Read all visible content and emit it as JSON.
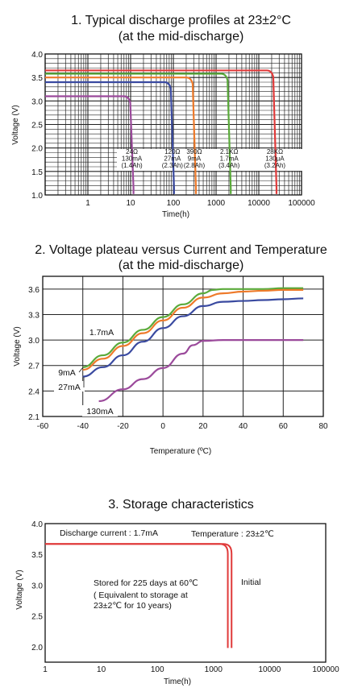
{
  "chart_data": [
    {
      "type": "line",
      "title_line1": "1. Typical discharge profiles at 23±2°C",
      "title_line2": "(at  the mid-discharge)",
      "xlabel": "Time(h)",
      "ylabel": "Voltage (V)",
      "xscale": "log",
      "xlim": [
        0.1,
        100000
      ],
      "ylim": [
        1.0,
        4.0
      ],
      "x_ticks": [
        "1",
        "10",
        "100",
        "1000",
        "10000",
        "100000"
      ],
      "y_ticks": [
        "1.0",
        "1.5",
        "2.0",
        "2.5",
        "3.0",
        "3.5",
        "4.0"
      ],
      "grid": true,
      "series": [
        {
          "color": "#9b4a9b",
          "plateau": 3.1,
          "cutoff": 9,
          "labels": [
            "24Ω",
            "130mA",
            "(1.4Ah)"
          ]
        },
        {
          "color": "#3a4aa0",
          "plateau": 3.4,
          "cutoff": 80,
          "labels": [
            "120Ω",
            "27mA",
            "(2.3Ah)"
          ]
        },
        {
          "color": "#ee7a2a",
          "plateau": 3.5,
          "cutoff": 260,
          "labels": [
            "390Ω",
            "9mA",
            "(2.8Ah)"
          ]
        },
        {
          "color": "#5aaa3a",
          "plateau": 3.58,
          "cutoff": 1700,
          "labels": [
            "2.1KΩ",
            "1.7mA",
            "(3.4Ah)"
          ]
        },
        {
          "color": "#e03a3a",
          "plateau": 3.65,
          "cutoff": 20000,
          "labels": [
            "28KΩ",
            "130μA",
            "(3.2Ah)"
          ]
        }
      ]
    },
    {
      "type": "line",
      "title_line1": "2. Voltage plateau versus Current and Temperature",
      "title_line2": "(at the mid-discharge)",
      "xlabel": "Temperature (ºC)",
      "ylabel": "Voltage (V)",
      "xlim": [
        -60,
        80
      ],
      "ylim": [
        2.1,
        3.75
      ],
      "x_ticks": [
        "-60",
        "-40",
        "-20",
        "0",
        "20",
        "40",
        "60",
        "80"
      ],
      "y_ticks": [
        "2.1",
        "2.4",
        "2.7",
        "3.0",
        "3.3",
        "3.6"
      ],
      "grid": true,
      "series": [
        {
          "name": "1.7mA",
          "color": "#5aaa3a",
          "x": [
            -40,
            -30,
            -20,
            -10,
            0,
            10,
            20,
            25,
            30,
            40,
            50,
            60,
            70
          ],
          "y": [
            2.68,
            2.82,
            2.97,
            3.12,
            3.27,
            3.42,
            3.55,
            3.59,
            3.6,
            3.6,
            3.6,
            3.61,
            3.61
          ]
        },
        {
          "name": "9mA",
          "color": "#ee7a2a",
          "x": [
            -40,
            -30,
            -20,
            -10,
            0,
            10,
            20,
            30,
            40,
            50,
            60,
            70
          ],
          "y": [
            2.65,
            2.78,
            2.93,
            3.08,
            3.23,
            3.38,
            3.5,
            3.55,
            3.57,
            3.58,
            3.59,
            3.59
          ]
        },
        {
          "name": "27mA",
          "color": "#3a4aa0",
          "x": [
            -40,
            -30,
            -20,
            -10,
            0,
            10,
            20,
            30,
            40,
            50,
            60,
            70
          ],
          "y": [
            2.57,
            2.68,
            2.82,
            2.98,
            3.14,
            3.28,
            3.4,
            3.45,
            3.46,
            3.47,
            3.48,
            3.49
          ]
        },
        {
          "name": "130mA",
          "color": "#9b4a9b",
          "x": [
            -32,
            -20,
            -10,
            0,
            10,
            15,
            20,
            30,
            40,
            50,
            60,
            70
          ],
          "y": [
            2.28,
            2.42,
            2.54,
            2.67,
            2.84,
            2.94,
            2.99,
            3.0,
            3.0,
            3.0,
            3.0,
            3.0
          ]
        }
      ]
    },
    {
      "type": "line",
      "title_line1": "3. Storage characteristics",
      "xlabel": "Time(h)",
      "ylabel": "Voltage (V)",
      "xscale": "log",
      "xlim": [
        1,
        100000
      ],
      "ylim": [
        1.75,
        4.0
      ],
      "x_ticks": [
        "1",
        "10",
        "100",
        "1000",
        "10000",
        "100000"
      ],
      "y_ticks": [
        "2.0",
        "2.5",
        "3.0",
        "3.5",
        "4.0"
      ],
      "grid": false,
      "annotations": {
        "discharge_current": "Discharge current : 1.7mA",
        "temperature": "Temperature : 23±2℃",
        "initial": "Initial",
        "stored_line1": "Stored for 225 days at 60℃",
        "stored_line2": "( Equivalent to storage at",
        "stored_line3": "23±2℃ for 10 years)"
      },
      "series": [
        {
          "color": "#e03a3a",
          "plateau": 3.67,
          "cutoff": 1800
        },
        {
          "color": "#e03a3a",
          "plateau": 3.67,
          "cutoff": 2100
        }
      ]
    }
  ]
}
